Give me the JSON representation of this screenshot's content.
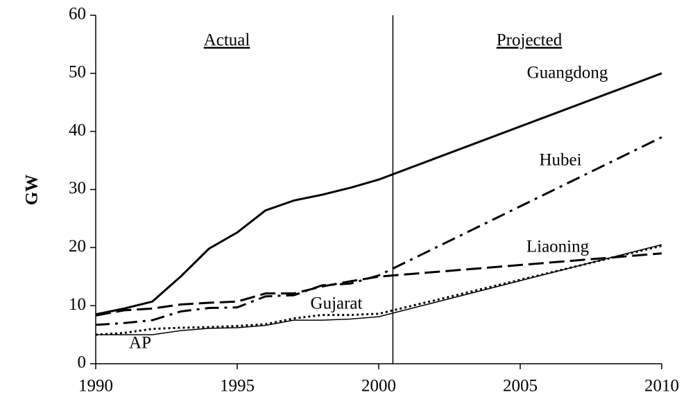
{
  "chart_data": {
    "type": "line",
    "ylabel": "GW",
    "annotations": [
      "Actual",
      "Projected"
    ],
    "divider_x": 2000.5,
    "x": [
      1990,
      1991,
      1992,
      1993,
      1994,
      1995,
      1996,
      1997,
      1998,
      1999,
      2000,
      2010
    ],
    "series": [
      {
        "name": "Guangdong",
        "color": "#000000",
        "style": "solid",
        "width": 3,
        "values": [
          8.5,
          9.5,
          10.7,
          15,
          19.8,
          22.6,
          26.4,
          28.1,
          29.1,
          30.3,
          31.7,
          50
        ]
      },
      {
        "name": "Hubei",
        "color": "#000000",
        "style": "dashdot",
        "width": 3,
        "values": [
          6.7,
          7,
          7.5,
          9,
          9.6,
          9.7,
          11.6,
          11.8,
          13.5,
          13.8,
          15.2,
          39
        ]
      },
      {
        "name": "Liaoning",
        "color": "#000000",
        "style": "dash",
        "width": 3,
        "values": [
          8.3,
          9.2,
          9.5,
          10.2,
          10.5,
          10.7,
          12.1,
          12.1,
          13.3,
          14.2,
          15,
          19
        ]
      },
      {
        "name": "Gujarat",
        "color": "#000000",
        "style": "dot",
        "width": 3,
        "values": [
          5,
          5.3,
          6,
          6.2,
          6.3,
          6.5,
          6.8,
          7.8,
          8.4,
          8.4,
          8.6,
          20.3
        ]
      },
      {
        "name": "AP",
        "color": "#000000",
        "style": "solid",
        "width": 1.5,
        "values": [
          5,
          5,
          5,
          5.7,
          6.1,
          6.2,
          6.6,
          7.5,
          7.5,
          7.7,
          8.1,
          20.5
        ]
      }
    ],
    "xlim": [
      1990,
      2010
    ],
    "xticks": [
      1990,
      1995,
      2000,
      2005,
      2010
    ],
    "ylim": [
      0,
      60
    ],
    "yticks": [
      0,
      10,
      20,
      30,
      40,
      50,
      60
    ]
  }
}
